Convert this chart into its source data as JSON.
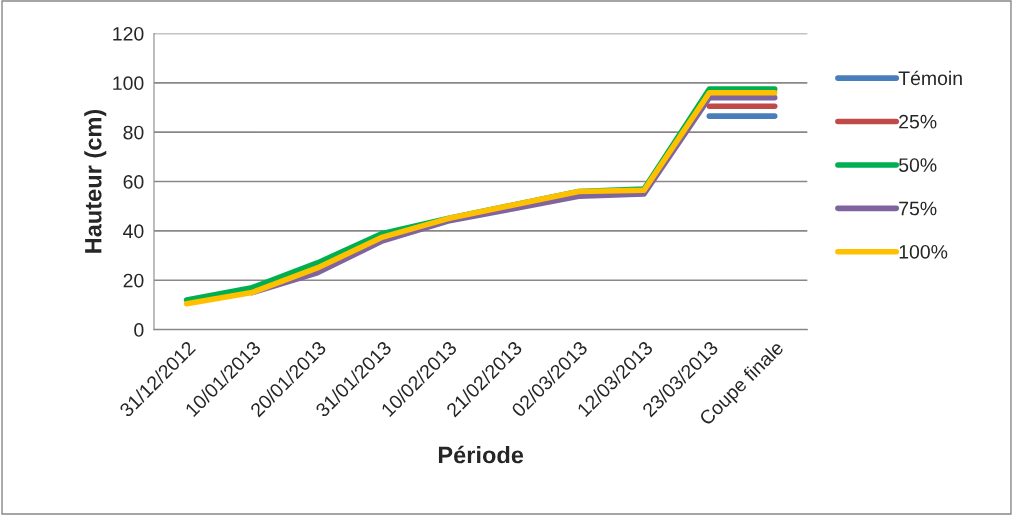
{
  "chart_data": {
    "type": "line",
    "xlabel": "Période",
    "ylabel": "Hauteur (cm)",
    "categories": [
      "31/12/2012",
      "10/01/2013",
      "20/01/2013",
      "31/01/2013",
      "10/02/2013",
      "21/02/2013",
      "02/03/2013",
      "12/03/2013",
      "23/03/2013",
      "Coupe finale"
    ],
    "series": [
      {
        "name": "Témoin",
        "color": "#4a7ebb",
        "values": [
          null,
          null,
          null,
          null,
          null,
          null,
          null,
          null,
          86.5,
          86.5
        ]
      },
      {
        "name": "25%",
        "color": "#be4b48",
        "values": [
          null,
          null,
          null,
          null,
          null,
          null,
          null,
          null,
          90.5,
          90.5
        ]
      },
      {
        "name": "50%",
        "color": "#00b050",
        "values": [
          12,
          17,
          27,
          39,
          45,
          50.5,
          56,
          57,
          97.5,
          97.5
        ]
      },
      {
        "name": "75%",
        "color": "#7f64a0",
        "values": [
          null,
          15,
          23,
          36,
          44,
          49,
          54,
          55,
          94,
          94
        ]
      },
      {
        "name": "100%",
        "color": "#ffc000",
        "values": [
          10.5,
          15,
          25,
          37.5,
          45,
          50.5,
          56,
          56.5,
          96,
          96
        ]
      }
    ],
    "ylim": [
      0,
      120
    ],
    "yticks": [
      0,
      20,
      40,
      60,
      80,
      100,
      120
    ],
    "grid": "y",
    "legend": "right",
    "marker": "none",
    "line_style": "solid"
  }
}
